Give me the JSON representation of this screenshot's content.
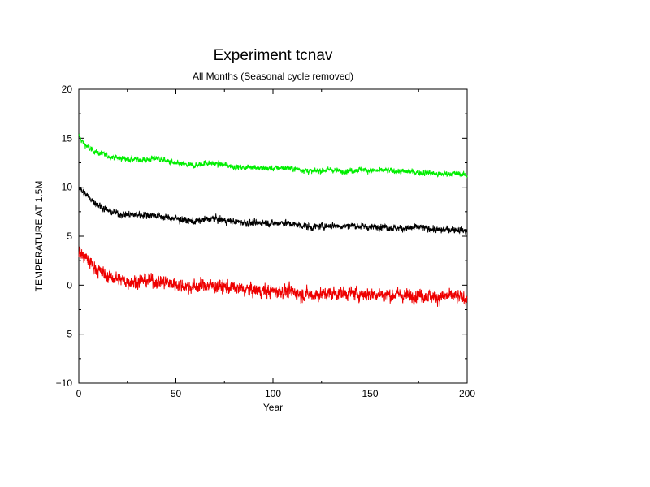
{
  "chart_data": {
    "type": "line",
    "title": "Experiment tcnav",
    "subtitle": "All Months (Seasonal cycle removed)",
    "xlabel": "Year",
    "ylabel": "TEMPERATURE AT 1.5M",
    "xlim": [
      0,
      200
    ],
    "ylim": [
      -10,
      20
    ],
    "x_ticks": [
      0,
      50,
      100,
      150,
      200
    ],
    "y_ticks": [
      -10,
      -5,
      0,
      5,
      10,
      15,
      20
    ],
    "grid": false,
    "legend": "none",
    "series": [
      {
        "color": "#00ee00",
        "noise": 0.25,
        "points": [
          [
            0,
            15.2
          ],
          [
            2,
            14.6
          ],
          [
            5,
            14.0
          ],
          [
            10,
            13.5
          ],
          [
            15,
            13.2
          ],
          [
            20,
            13.0
          ],
          [
            25,
            12.9
          ],
          [
            30,
            12.8
          ],
          [
            35,
            12.8
          ],
          [
            40,
            13.0
          ],
          [
            45,
            12.7
          ],
          [
            50,
            12.4
          ],
          [
            55,
            12.3
          ],
          [
            60,
            12.2
          ],
          [
            65,
            12.5
          ],
          [
            70,
            12.4
          ],
          [
            75,
            12.3
          ],
          [
            80,
            12.1
          ],
          [
            85,
            12.0
          ],
          [
            90,
            12.1
          ],
          [
            95,
            11.9
          ],
          [
            100,
            11.9
          ],
          [
            105,
            12.0
          ],
          [
            110,
            11.9
          ],
          [
            115,
            11.8
          ],
          [
            120,
            11.6
          ],
          [
            125,
            11.7
          ],
          [
            130,
            11.8
          ],
          [
            135,
            11.6
          ],
          [
            140,
            11.7
          ],
          [
            145,
            11.8
          ],
          [
            150,
            11.7
          ],
          [
            155,
            11.7
          ],
          [
            160,
            11.7
          ],
          [
            165,
            11.6
          ],
          [
            170,
            11.6
          ],
          [
            175,
            11.5
          ],
          [
            180,
            11.5
          ],
          [
            185,
            11.3
          ],
          [
            190,
            11.4
          ],
          [
            195,
            11.4
          ],
          [
            200,
            11.2
          ]
        ]
      },
      {
        "color": "#000000",
        "noise": 0.3,
        "points": [
          [
            0,
            10.0
          ],
          [
            2,
            9.5
          ],
          [
            5,
            9.0
          ],
          [
            10,
            8.2
          ],
          [
            15,
            7.6
          ],
          [
            20,
            7.3
          ],
          [
            25,
            7.2
          ],
          [
            30,
            7.2
          ],
          [
            35,
            7.2
          ],
          [
            40,
            7.1
          ],
          [
            45,
            6.9
          ],
          [
            50,
            6.8
          ],
          [
            55,
            6.6
          ],
          [
            60,
            6.5
          ],
          [
            65,
            6.7
          ],
          [
            70,
            6.8
          ],
          [
            75,
            6.6
          ],
          [
            80,
            6.5
          ],
          [
            85,
            6.4
          ],
          [
            90,
            6.3
          ],
          [
            95,
            6.4
          ],
          [
            100,
            6.3
          ],
          [
            105,
            6.4
          ],
          [
            110,
            6.2
          ],
          [
            115,
            6.1
          ],
          [
            120,
            5.9
          ],
          [
            125,
            6.0
          ],
          [
            130,
            6.1
          ],
          [
            135,
            6.0
          ],
          [
            140,
            6.1
          ],
          [
            145,
            6.0
          ],
          [
            150,
            5.9
          ],
          [
            155,
            6.0
          ],
          [
            160,
            5.9
          ],
          [
            165,
            5.8
          ],
          [
            170,
            5.8
          ],
          [
            175,
            5.9
          ],
          [
            180,
            5.8
          ],
          [
            185,
            5.6
          ],
          [
            190,
            5.7
          ],
          [
            195,
            5.7
          ],
          [
            200,
            5.5
          ]
        ]
      },
      {
        "color": "#ee0000",
        "noise": 0.6,
        "points": [
          [
            0,
            3.5
          ],
          [
            2,
            3.0
          ],
          [
            5,
            2.5
          ],
          [
            10,
            1.5
          ],
          [
            15,
            0.9
          ],
          [
            20,
            0.6
          ],
          [
            25,
            0.4
          ],
          [
            30,
            0.4
          ],
          [
            35,
            0.5
          ],
          [
            40,
            0.4
          ],
          [
            45,
            0.3
          ],
          [
            50,
            0.1
          ],
          [
            55,
            -0.1
          ],
          [
            60,
            -0.2
          ],
          [
            65,
            0.0
          ],
          [
            70,
            -0.1
          ],
          [
            75,
            -0.2
          ],
          [
            80,
            -0.3
          ],
          [
            85,
            -0.4
          ],
          [
            90,
            -0.5
          ],
          [
            95,
            -0.6
          ],
          [
            100,
            -0.6
          ],
          [
            105,
            -0.6
          ],
          [
            110,
            -0.7
          ],
          [
            115,
            -0.9
          ],
          [
            120,
            -1.0
          ],
          [
            125,
            -0.9
          ],
          [
            130,
            -0.8
          ],
          [
            135,
            -0.8
          ],
          [
            140,
            -0.8
          ],
          [
            145,
            -0.9
          ],
          [
            150,
            -0.9
          ],
          [
            155,
            -0.9
          ],
          [
            160,
            -1.0
          ],
          [
            165,
            -1.0
          ],
          [
            170,
            -1.1
          ],
          [
            175,
            -1.0
          ],
          [
            180,
            -1.1
          ],
          [
            185,
            -1.2
          ],
          [
            190,
            -1.1
          ],
          [
            195,
            -1.2
          ],
          [
            200,
            -1.3
          ]
        ]
      }
    ]
  }
}
